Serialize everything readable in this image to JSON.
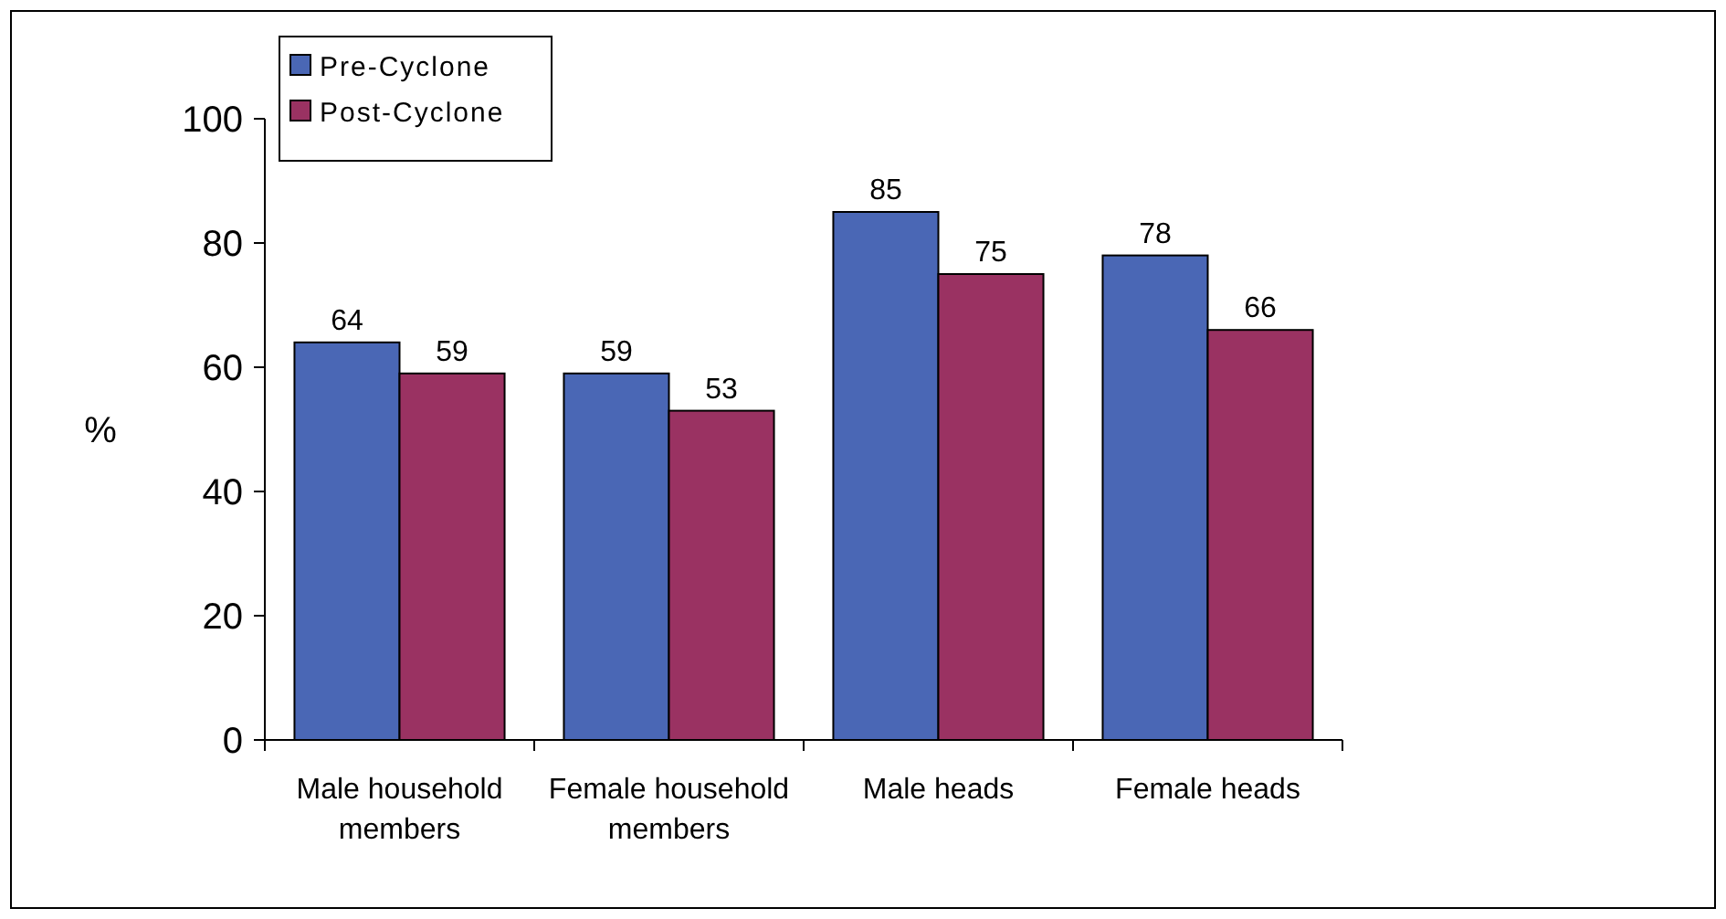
{
  "chart_data": {
    "type": "bar",
    "ylabel": "%",
    "categories": [
      "Male household members",
      "Female household members",
      "Male heads",
      "Female heads"
    ],
    "series": [
      {
        "name": "Pre-Cyclone",
        "color": "#4a67b5",
        "values": [
          64,
          59,
          85,
          78
        ]
      },
      {
        "name": "Post-Cyclone",
        "color": "#9a3262",
        "values": [
          59,
          53,
          75,
          66
        ]
      }
    ],
    "ylim": [
      0,
      100
    ],
    "yticks": [
      0,
      20,
      40,
      60,
      80,
      100
    ],
    "grid": false,
    "legend": "top left",
    "data_labels": true
  }
}
